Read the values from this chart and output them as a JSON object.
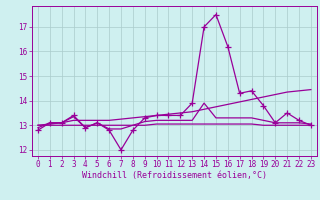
{
  "x": [
    0,
    1,
    2,
    3,
    4,
    5,
    6,
    7,
    8,
    9,
    10,
    11,
    12,
    13,
    14,
    15,
    16,
    17,
    18,
    19,
    20,
    21,
    22,
    23
  ],
  "y_main": [
    12.8,
    13.1,
    13.1,
    13.4,
    12.9,
    13.1,
    12.8,
    12.0,
    12.8,
    13.3,
    13.4,
    13.4,
    13.4,
    13.9,
    17.0,
    17.5,
    16.2,
    14.3,
    14.4,
    13.8,
    13.1,
    13.5,
    13.2,
    13.0
  ],
  "y_line2": [
    12.9,
    13.1,
    13.1,
    13.35,
    12.9,
    13.1,
    12.85,
    12.85,
    13.0,
    13.15,
    13.2,
    13.2,
    13.2,
    13.2,
    13.9,
    13.3,
    13.3,
    13.3,
    13.3,
    13.2,
    13.1,
    13.1,
    13.1,
    13.05
  ],
  "y_flat": [
    13.0,
    13.0,
    13.0,
    13.0,
    13.0,
    13.0,
    13.0,
    13.0,
    13.0,
    13.0,
    13.05,
    13.05,
    13.05,
    13.05,
    13.05,
    13.05,
    13.05,
    13.05,
    13.05,
    13.0,
    13.0,
    13.0,
    13.0,
    13.0
  ],
  "y_trend": [
    13.0,
    13.05,
    13.1,
    13.2,
    13.2,
    13.2,
    13.2,
    13.25,
    13.3,
    13.35,
    13.4,
    13.45,
    13.5,
    13.55,
    13.65,
    13.75,
    13.85,
    13.95,
    14.05,
    14.15,
    14.25,
    14.35,
    14.4,
    14.45
  ],
  "xlim": [
    -0.5,
    23.5
  ],
  "ylim": [
    11.75,
    17.85
  ],
  "yticks": [
    12,
    13,
    14,
    15,
    16,
    17
  ],
  "xticks": [
    0,
    1,
    2,
    3,
    4,
    5,
    6,
    7,
    8,
    9,
    10,
    11,
    12,
    13,
    14,
    15,
    16,
    17,
    18,
    19,
    20,
    21,
    22,
    23
  ],
  "line_color": "#990099",
  "bg_color": "#cff0f0",
  "grid_color": "#aacccc",
  "xlabel": "Windchill (Refroidissement éolien,°C)",
  "marker": "+",
  "marker_size": 4,
  "line_width": 0.9,
  "tick_fontsize": 5.5,
  "label_fontsize": 6.0
}
